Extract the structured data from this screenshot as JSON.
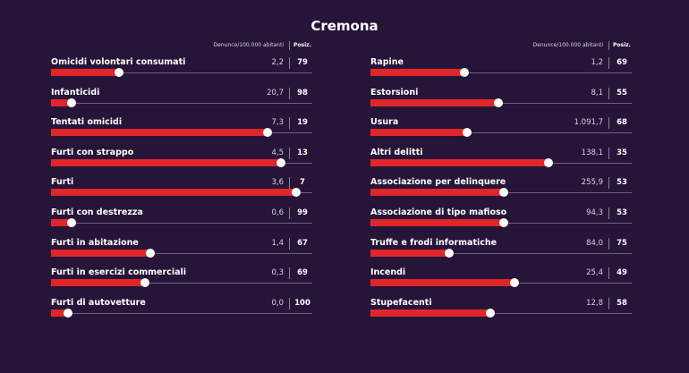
{
  "title": "Cremona",
  "header": {
    "left_value_label": "Denunce/100.000 abitanti",
    "left_position_label": "Posiz.",
    "right_value_label": "Denunce/100.000 abitanti",
    "right_position_label": "Posiz."
  },
  "colors": {
    "background": "#261538",
    "bar": "#e0262a",
    "track": "#6f5f86",
    "knob": "#ffffff"
  },
  "chart_data": {
    "type": "bar",
    "title": "Cremona",
    "note": "Bar length shows relative standing; value = denunce per 100.000 abitanti, pos = provincial rank",
    "left": [
      {
        "label": "Omicidi volontari consumati",
        "value": "2,2",
        "pos": "79",
        "fill": 0.26
      },
      {
        "label": "Infanticidi",
        "value": "20,7",
        "pos": "98",
        "fill": 0.08
      },
      {
        "label": "Tentati omicidi",
        "value": "7,3",
        "pos": "19",
        "fill": 0.83
      },
      {
        "label": "Furti con strappo",
        "value": "4,5",
        "pos": "13",
        "fill": 0.88
      },
      {
        "label": "Furti",
        "value": "3,6",
        "pos": "7",
        "fill": 0.94
      },
      {
        "label": "Furti con destrezza",
        "value": "0,6",
        "pos": "99",
        "fill": 0.08
      },
      {
        "label": "Furti in abitazione",
        "value": "1,4",
        "pos": "67",
        "fill": 0.38
      },
      {
        "label": "Furti in esercizi commerciali",
        "value": "0,3",
        "pos": "69",
        "fill": 0.36
      },
      {
        "label": "Furti di autovetture",
        "value": "0,0",
        "pos": "100",
        "fill": 0.065
      }
    ],
    "right": [
      {
        "label": "Rapine",
        "value": "1,2",
        "pos": "69",
        "fill": 0.36
      },
      {
        "label": "Estorsioni",
        "value": "8,1",
        "pos": "55",
        "fill": 0.49
      },
      {
        "label": "Usura",
        "value": "1.091,7",
        "pos": "68",
        "fill": 0.37
      },
      {
        "label": "Altri delitti",
        "value": "138,1",
        "pos": "35",
        "fill": 0.68
      },
      {
        "label": "Associazione per delinquere",
        "value": "255,9",
        "pos": "53",
        "fill": 0.51
      },
      {
        "label": "Associazione di tipo mafioso",
        "value": "94,3",
        "pos": "53",
        "fill": 0.51
      },
      {
        "label": "Truffe e frodi informatiche",
        "value": "84,0",
        "pos": "75",
        "fill": 0.3
      },
      {
        "label": "Incendi",
        "value": "25,4",
        "pos": "49",
        "fill": 0.55
      },
      {
        "label": "Stupefacenti",
        "value": "12,8",
        "pos": "58",
        "fill": 0.46
      }
    ]
  }
}
